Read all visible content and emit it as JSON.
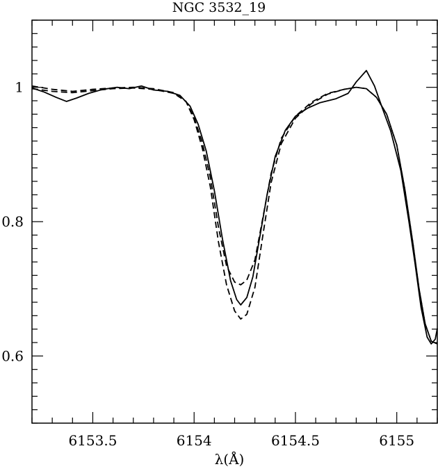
{
  "chart_data": {
    "type": "line",
    "title": "NGC 3532_19",
    "xlabel": "λ(Å)",
    "ylabel": "",
    "xlim": [
      6153.2,
      6155.2
    ],
    "ylim": [
      0.5,
      1.1
    ],
    "grid": false,
    "x_ticks": {
      "major": [
        6153.5,
        6154,
        6154.5,
        6155
      ],
      "major_labels": [
        "6153.5",
        "6154",
        "6154.5",
        "6155"
      ],
      "minor_step": 0.1
    },
    "y_ticks": {
      "major": [
        0.6,
        0.8,
        1.0
      ],
      "major_labels": [
        "0.6",
        "0.8",
        "1"
      ],
      "minor_step": 0.02
    },
    "series": [
      {
        "style": "solid",
        "color": "#000000",
        "points": [
          [
            6153.2,
            0.999
          ],
          [
            6153.26,
            0.993
          ],
          [
            6153.32,
            0.985
          ],
          [
            6153.37,
            0.979
          ],
          [
            6153.42,
            0.984
          ],
          [
            6153.48,
            0.991
          ],
          [
            6153.55,
            0.997
          ],
          [
            6153.62,
            1.0
          ],
          [
            6153.68,
            0.998
          ],
          [
            6153.74,
            1.002
          ],
          [
            6153.8,
            0.996
          ],
          [
            6153.87,
            0.994
          ],
          [
            6153.93,
            0.988
          ],
          [
            6153.98,
            0.972
          ],
          [
            6154.02,
            0.945
          ],
          [
            6154.06,
            0.905
          ],
          [
            6154.1,
            0.846
          ],
          [
            6154.14,
            0.774
          ],
          [
            6154.18,
            0.712
          ],
          [
            6154.21,
            0.684
          ],
          [
            6154.23,
            0.676
          ],
          [
            6154.26,
            0.687
          ],
          [
            6154.29,
            0.718
          ],
          [
            6154.32,
            0.77
          ],
          [
            6154.36,
            0.84
          ],
          [
            6154.4,
            0.897
          ],
          [
            6154.45,
            0.936
          ],
          [
            6154.5,
            0.957
          ],
          [
            6154.56,
            0.969
          ],
          [
            6154.62,
            0.977
          ],
          [
            6154.7,
            0.983
          ],
          [
            6154.76,
            0.991
          ],
          [
            6154.8,
            1.008
          ],
          [
            6154.85,
            1.025
          ],
          [
            6154.89,
            1.002
          ],
          [
            6154.93,
            0.968
          ],
          [
            6154.97,
            0.935
          ],
          [
            6155.02,
            0.876
          ],
          [
            6155.06,
            0.8
          ],
          [
            6155.09,
            0.738
          ],
          [
            6155.12,
            0.672
          ],
          [
            6155.15,
            0.628
          ],
          [
            6155.17,
            0.618
          ],
          [
            6155.19,
            0.625
          ],
          [
            6155.2,
            0.641
          ]
        ]
      },
      {
        "style": "dashed",
        "color": "#000000",
        "points": [
          [
            6153.2,
            0.998
          ],
          [
            6153.3,
            0.994
          ],
          [
            6153.4,
            0.992
          ],
          [
            6153.5,
            0.995
          ],
          [
            6153.6,
            0.998
          ],
          [
            6153.7,
            0.999
          ],
          [
            6153.8,
            0.997
          ],
          [
            6153.9,
            0.991
          ],
          [
            6153.96,
            0.979
          ],
          [
            6154.0,
            0.955
          ],
          [
            6154.04,
            0.918
          ],
          [
            6154.08,
            0.866
          ],
          [
            6154.12,
            0.792
          ],
          [
            6154.16,
            0.734
          ],
          [
            6154.2,
            0.71
          ],
          [
            6154.23,
            0.706
          ],
          [
            6154.26,
            0.713
          ],
          [
            6154.3,
            0.743
          ],
          [
            6154.34,
            0.807
          ],
          [
            6154.38,
            0.872
          ],
          [
            6154.43,
            0.924
          ],
          [
            6154.5,
            0.957
          ],
          [
            6154.58,
            0.978
          ],
          [
            6154.66,
            0.991
          ],
          [
            6154.74,
            0.997
          ],
          [
            6154.8,
            1.0
          ],
          [
            6154.85,
            0.998
          ],
          [
            6154.9,
            0.985
          ],
          [
            6154.95,
            0.96
          ],
          [
            6155.0,
            0.914
          ],
          [
            6155.04,
            0.848
          ],
          [
            6155.08,
            0.767
          ],
          [
            6155.11,
            0.7
          ],
          [
            6155.14,
            0.648
          ],
          [
            6155.17,
            0.622
          ],
          [
            6155.2,
            0.618
          ]
        ]
      },
      {
        "style": "dashed",
        "color": "#000000",
        "points": [
          [
            6153.2,
            1.002
          ],
          [
            6153.3,
            0.997
          ],
          [
            6153.4,
            0.994
          ],
          [
            6153.5,
            0.997
          ],
          [
            6153.6,
            0.999
          ],
          [
            6153.7,
            1.0
          ],
          [
            6153.8,
            0.998
          ],
          [
            6153.9,
            0.992
          ],
          [
            6153.96,
            0.979
          ],
          [
            6154.0,
            0.952
          ],
          [
            6154.04,
            0.91
          ],
          [
            6154.08,
            0.852
          ],
          [
            6154.12,
            0.77
          ],
          [
            6154.16,
            0.706
          ],
          [
            6154.2,
            0.667
          ],
          [
            6154.23,
            0.655
          ],
          [
            6154.26,
            0.662
          ],
          [
            6154.3,
            0.702
          ],
          [
            6154.34,
            0.781
          ],
          [
            6154.38,
            0.858
          ],
          [
            6154.43,
            0.916
          ],
          [
            6154.5,
            0.954
          ],
          [
            6154.58,
            0.976
          ],
          [
            6154.66,
            0.99
          ],
          [
            6154.74,
            0.997
          ],
          [
            6154.8,
            1.0
          ],
          [
            6154.85,
            0.998
          ],
          [
            6154.9,
            0.985
          ],
          [
            6154.95,
            0.96
          ],
          [
            6155.0,
            0.914
          ],
          [
            6155.04,
            0.848
          ],
          [
            6155.08,
            0.767
          ],
          [
            6155.11,
            0.7
          ],
          [
            6155.14,
            0.648
          ],
          [
            6155.17,
            0.622
          ],
          [
            6155.2,
            0.618
          ]
        ]
      }
    ]
  }
}
